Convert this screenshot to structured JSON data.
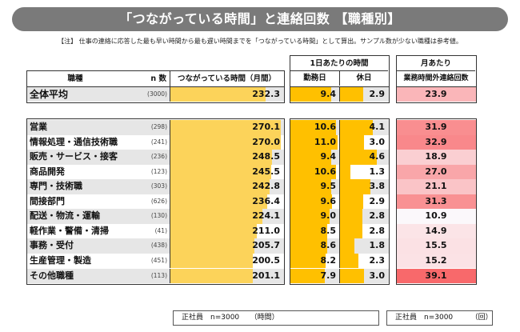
{
  "title": "「つながっている時間」と連絡回数 【職種別】",
  "note": "【注】 仕事の連絡に応答した最も早い時間から最も遅い時間までを「つながっている時間」として算出。サンプル数が少ない職種は参考値。",
  "headers": {
    "job": "職種",
    "n": "n 数",
    "connected": "つながっている時間（月間）",
    "daily_group": "1日あたりの時間",
    "workday": "勤務日",
    "holiday": "休日",
    "monthly_group": "月あたり",
    "contacts": "業務時間外連絡回数"
  },
  "footers": {
    "left": "正社員　n=3000　　（時間）",
    "right": "正社員　n=3000　　　（回）"
  },
  "chart_data": {
    "type": "table",
    "title": "「つながっている時間」と連絡回数 【職種別】",
    "columns": [
      "職種",
      "n 数",
      "つながっている時間（月間）",
      "勤務日",
      "休日",
      "業務時間外連絡回数"
    ],
    "units": {
      "connected": "時間",
      "contacts": "回"
    },
    "sample_base": "正社員 n=3000",
    "average": {
      "job": "全体平均",
      "n": "(3000)",
      "connected": 232.3,
      "workday": 9.4,
      "holiday": 2.9,
      "contacts": 23.9
    },
    "rows": [
      {
        "job": "営業",
        "n": "(298)",
        "connected": 270.1,
        "workday": 10.6,
        "holiday": 4.1,
        "contacts": 31.9
      },
      {
        "job": "情報処理・通信技術職",
        "n": "(241)",
        "connected": 270.0,
        "workday": 11.0,
        "holiday": 3.0,
        "contacts": 32.9
      },
      {
        "job": "販売・サービス・接客",
        "n": "(236)",
        "connected": 248.5,
        "workday": 9.4,
        "holiday": 4.6,
        "contacts": 18.9
      },
      {
        "job": "商品開発",
        "n": "(123)",
        "connected": 245.5,
        "workday": 10.6,
        "holiday": 1.3,
        "contacts": 27.0
      },
      {
        "job": "専門・技術職",
        "n": "(303)",
        "connected": 242.8,
        "workday": 9.5,
        "holiday": 3.8,
        "contacts": 21.1
      },
      {
        "job": "間接部門",
        "n": "(626)",
        "connected": 236.4,
        "workday": 9.6,
        "holiday": 2.9,
        "contacts": 31.3
      },
      {
        "job": "配送・物流・運輸",
        "n": "(130)",
        "connected": 224.1,
        "workday": 9.0,
        "holiday": 2.8,
        "contacts": 10.9
      },
      {
        "job": "軽作業・警備・清掃",
        "n": "(41)",
        "connected": 211.0,
        "workday": 8.5,
        "holiday": 2.8,
        "contacts": 14.9
      },
      {
        "job": "事務・受付",
        "n": "(438)",
        "connected": 205.7,
        "workday": 8.6,
        "holiday": 1.8,
        "contacts": 15.5
      },
      {
        "job": "生産管理・製造",
        "n": "(451)",
        "connected": 200.5,
        "workday": 8.2,
        "holiday": 2.3,
        "contacts": 15.2
      },
      {
        "job": "その他職種",
        "n": "(113)",
        "connected": 201.1,
        "workday": 7.9,
        "holiday": 3.0,
        "contacts": 39.1
      }
    ],
    "colors": {
      "connected_bar": "#fcd35a",
      "daily_bar": "#ffc000",
      "contacts_low": "#fbf8fb",
      "contacts_high": "#f8696b"
    }
  }
}
